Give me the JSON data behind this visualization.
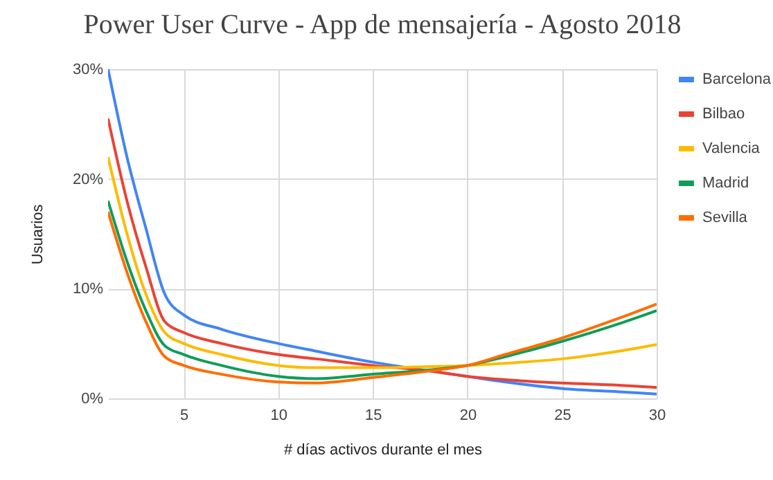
{
  "chart_data": {
    "type": "line",
    "title": "Power User Curve - App de mensajería - Agosto 2018",
    "xlabel": "# días activos durante el mes",
    "ylabel": "Usuarios",
    "x": [
      1,
      2,
      3,
      4,
      5,
      7,
      10,
      12,
      15,
      18,
      20,
      22,
      25,
      28,
      30
    ],
    "series": [
      {
        "name": "Barcelona",
        "color": "#4285f4",
        "values": [
          30,
          22,
          15.5,
          9.5,
          7.6,
          6.3,
          5,
          4.3,
          3.3,
          2.5,
          2,
          1.5,
          0.9,
          0.6,
          0.4
        ]
      },
      {
        "name": "Bilbao",
        "color": "#ea4335",
        "values": [
          25.5,
          18,
          12,
          7,
          6,
          5,
          4,
          3.6,
          3,
          2.5,
          2,
          1.7,
          1.4,
          1.2,
          1
        ]
      },
      {
        "name": "Valencia",
        "color": "#fbbc04",
        "values": [
          22,
          15,
          9.5,
          6,
          5,
          4,
          3,
          2.8,
          2.8,
          2.9,
          3,
          3.2,
          3.6,
          4.3,
          4.9
        ]
      },
      {
        "name": "Madrid",
        "color": "#0f9d58",
        "values": [
          18,
          12.5,
          8,
          4.8,
          4,
          3,
          2,
          1.8,
          2.2,
          2.6,
          3,
          3.8,
          5.2,
          6.8,
          8
        ]
      },
      {
        "name": "Sevilla",
        "color": "#ff6d01",
        "values": [
          17,
          11.5,
          7,
          3.8,
          3,
          2.2,
          1.5,
          1.4,
          1.9,
          2.5,
          3,
          4,
          5.5,
          7.3,
          8.6
        ]
      }
    ],
    "xlim": [
      1,
      30
    ],
    "xticks": [
      5,
      10,
      15,
      20,
      25,
      30
    ],
    "ylim": [
      0,
      30
    ],
    "yticks": [
      {
        "value": 0,
        "label": "0%"
      },
      {
        "value": 10,
        "label": "10%"
      },
      {
        "value": 20,
        "label": "20%"
      },
      {
        "value": 30,
        "label": "30%"
      }
    ],
    "grid": true,
    "legend": "right",
    "line_style": "solid",
    "marker": "none"
  }
}
